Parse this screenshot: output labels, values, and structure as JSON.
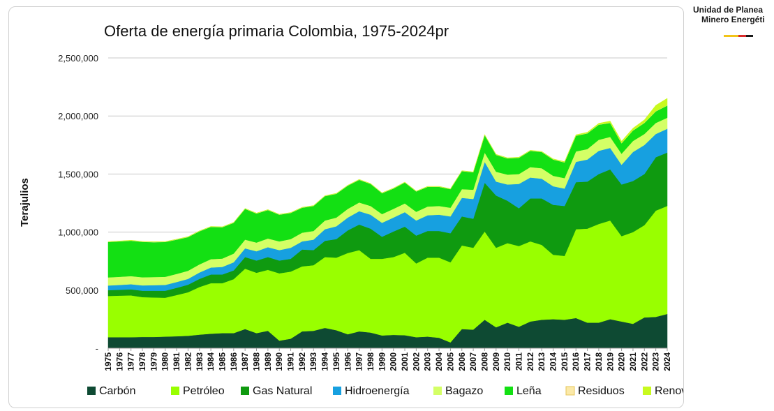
{
  "logo": {
    "line1": "Unidad de Planea",
    "line2": "Minero Energéti",
    "colors": [
      "#f2c418",
      "#f2c418",
      "#d92b2b",
      "#1a1a1a"
    ]
  },
  "chart_data": {
    "type": "area",
    "stacked": true,
    "title": "Oferta de energía primaria Colombia, 1975-2024pr",
    "xlabel": "",
    "ylabel": "Terajulios",
    "ylim": [
      0,
      2500000
    ],
    "yticks": [
      0,
      500000,
      1000000,
      1500000,
      2000000,
      2500000
    ],
    "ytick_labels": [
      "-",
      "500,000",
      "1,000,000",
      "1,500,000",
      "2,000,000",
      "2,500,000"
    ],
    "grid": true,
    "legend_position": "bottom",
    "categories": [
      "1975",
      "1976",
      "1977",
      "1978",
      "1979",
      "1980",
      "1981",
      "1982",
      "1983",
      "1984",
      "1985",
      "1986",
      "1987",
      "1988",
      "1989",
      "1990",
      "1991",
      "1992",
      "1993",
      "1994",
      "1995",
      "1996",
      "1997",
      "1998",
      "1999",
      "2000",
      "2001",
      "2002",
      "2003",
      "2004",
      "2005",
      "2006",
      "2007",
      "2008",
      "2009",
      "2010",
      "2011",
      "2012",
      "2013",
      "2014",
      "2015",
      "2016",
      "2017",
      "2018",
      "2019",
      "2020",
      "2021",
      "2022",
      "2023",
      "2024"
    ],
    "series": [
      {
        "name": "Carbón",
        "color": "#0e4a33",
        "values": [
          95000,
          95000,
          95000,
          97000,
          97000,
          100000,
          103000,
          107000,
          117000,
          125000,
          130000,
          130000,
          165000,
          130000,
          150000,
          65000,
          82000,
          145000,
          150000,
          175000,
          155000,
          120000,
          145000,
          135000,
          110000,
          115000,
          112000,
          95000,
          100000,
          90000,
          50000,
          165000,
          160000,
          245000,
          180000,
          220000,
          185000,
          230000,
          245000,
          250000,
          245000,
          260000,
          220000,
          220000,
          250000,
          230000,
          210000,
          265000,
          270000,
          295000
        ]
      },
      {
        "name": "Petróleo",
        "color": "#99ff00",
        "values": [
          355000,
          358000,
          360000,
          343000,
          340000,
          335000,
          355000,
          375000,
          410000,
          435000,
          430000,
          465000,
          520000,
          520000,
          525000,
          580000,
          578000,
          560000,
          565000,
          610000,
          625000,
          700000,
          700000,
          635000,
          660000,
          670000,
          710000,
          635000,
          680000,
          690000,
          690000,
          720000,
          705000,
          760000,
          685000,
          685000,
          695000,
          690000,
          645000,
          555000,
          550000,
          765000,
          810000,
          850000,
          850000,
          735000,
          790000,
          795000,
          915000,
          930000
        ]
      },
      {
        "name": "Gas Natural",
        "color": "#0f9a10",
        "values": [
          50000,
          50000,
          52000,
          55000,
          58000,
          60000,
          62000,
          65000,
          70000,
          75000,
          75000,
          75000,
          100000,
          105000,
          110000,
          110000,
          110000,
          145000,
          130000,
          140000,
          160000,
          195000,
          220000,
          260000,
          190000,
          220000,
          225000,
          240000,
          230000,
          230000,
          250000,
          250000,
          250000,
          420000,
          450000,
          365000,
          325000,
          370000,
          400000,
          430000,
          430000,
          405000,
          405000,
          430000,
          440000,
          445000,
          440000,
          440000,
          460000,
          460000
        ]
      },
      {
        "name": "Hidroenergía",
        "color": "#17a0e0",
        "values": [
          40000,
          42000,
          44000,
          46000,
          48000,
          50000,
          50000,
          50000,
          55000,
          60000,
          65000,
          70000,
          75000,
          80000,
          85000,
          90000,
          95000,
          70000,
          90000,
          100000,
          110000,
          110000,
          115000,
          120000,
          120000,
          120000,
          125000,
          130000,
          135000,
          140000,
          145000,
          160000,
          170000,
          180000,
          120000,
          140000,
          210000,
          180000,
          170000,
          160000,
          150000,
          175000,
          190000,
          200000,
          185000,
          170000,
          250000,
          250000,
          200000,
          205000
        ]
      },
      {
        "name": "Bagazo",
        "color": "#d4ff66",
        "values": [
          70000,
          70000,
          70000,
          70000,
          70000,
          70000,
          70000,
          70000,
          70000,
          72000,
          72000,
          75000,
          75000,
          75000,
          75000,
          75000,
          75000,
          75000,
          75000,
          75000,
          75000,
          75000,
          75000,
          75000,
          75000,
          75000,
          75000,
          75000,
          75000,
          75000,
          75000,
          75000,
          80000,
          80000,
          85000,
          85000,
          85000,
          90000,
          90000,
          90000,
          90000,
          90000,
          90000,
          95000,
          95000,
          95000,
          95000,
          95000,
          95000,
          95000
        ]
      },
      {
        "name": "Leña",
        "color": "#13e013",
        "values": [
          305000,
          305000,
          305000,
          305000,
          300000,
          300000,
          295000,
          290000,
          285000,
          278000,
          270000,
          265000,
          265000,
          250000,
          245000,
          230000,
          225000,
          215000,
          215000,
          210000,
          205000,
          200000,
          195000,
          190000,
          180000,
          175000,
          180000,
          175000,
          170000,
          165000,
          160000,
          155000,
          150000,
          150000,
          145000,
          140000,
          140000,
          140000,
          140000,
          140000,
          135000,
          135000,
          135000,
          130000,
          120000,
          90000,
          90000,
          95000,
          100000,
          105000
        ]
      },
      {
        "name": "Residuos",
        "color": "#fbe9a8",
        "values": [
          2000,
          2000,
          2000,
          2000,
          2000,
          2000,
          2000,
          2000,
          2000,
          2000,
          2000,
          2000,
          2000,
          2000,
          2000,
          2000,
          2000,
          2000,
          2000,
          2000,
          2000,
          2000,
          2000,
          2000,
          2000,
          2000,
          2000,
          2000,
          2000,
          2000,
          2000,
          2000,
          2000,
          2000,
          2000,
          2000,
          2000,
          2000,
          2000,
          2000,
          2000,
          2000,
          2000,
          2000,
          2000,
          2000,
          2000,
          2000,
          2000,
          2000
        ]
      },
      {
        "name": "Renovables",
        "color": "#c8fa1e",
        "values": [
          2000,
          2000,
          2000,
          2000,
          2000,
          2000,
          2000,
          2000,
          2000,
          2000,
          2000,
          2000,
          2000,
          2000,
          2000,
          2000,
          2000,
          2000,
          2000,
          2000,
          2000,
          2000,
          2000,
          2000,
          2000,
          2000,
          2000,
          2000,
          2000,
          2000,
          2000,
          2000,
          2000,
          3000,
          3000,
          3000,
          3000,
          3000,
          3000,
          4000,
          5000,
          6000,
          8000,
          10000,
          14000,
          16000,
          18000,
          25000,
          50000,
          60000
        ]
      }
    ]
  }
}
